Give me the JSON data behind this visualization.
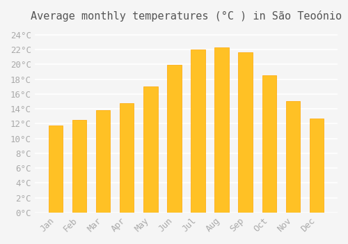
{
  "title": "Average monthly temperatures (°C ) in São Teoônio",
  "title_display": "Average monthly temperatures (°C ) in SÃ£o TeotÃ´nio",
  "months": [
    "Jan",
    "Feb",
    "Mar",
    "Apr",
    "May",
    "Jun",
    "Jul",
    "Aug",
    "Sep",
    "Oct",
    "Nov",
    "Dec"
  ],
  "values": [
    11.8,
    12.5,
    13.8,
    14.8,
    17.0,
    19.9,
    22.0,
    22.3,
    21.6,
    18.5,
    15.0,
    12.7
  ],
  "bar_color": "#FFC125",
  "bar_edge_color": "#FFA500",
  "background_color": "#F5F5F5",
  "grid_color": "#FFFFFF",
  "ylim": [
    0,
    25
  ],
  "yticks": [
    0,
    2,
    4,
    6,
    8,
    10,
    12,
    14,
    16,
    18,
    20,
    22,
    24
  ],
  "tick_label_color": "#AAAAAA",
  "title_color": "#555555",
  "title_fontsize": 11,
  "tick_fontsize": 9,
  "font_family": "monospace"
}
